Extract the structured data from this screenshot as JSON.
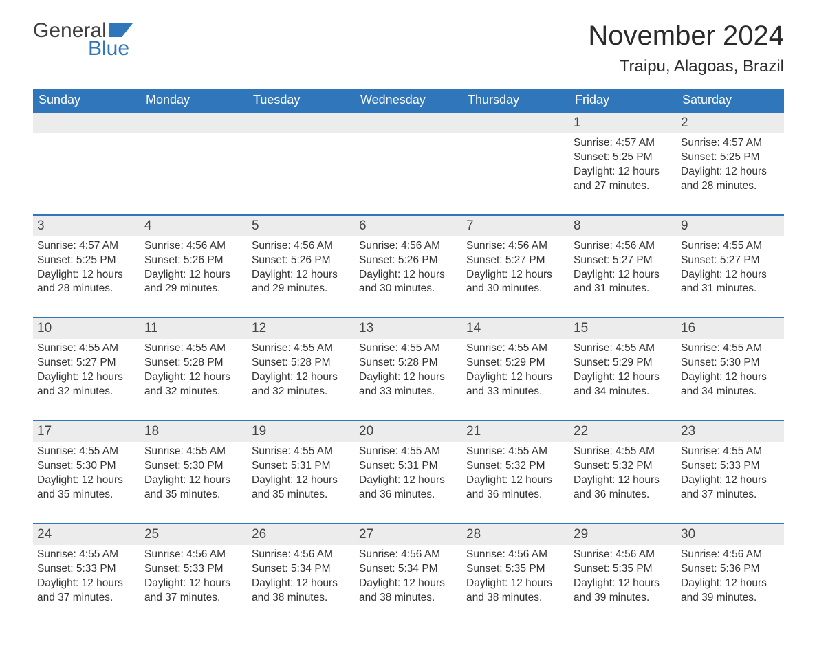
{
  "logo": {
    "general": "General",
    "blue": "Blue"
  },
  "title": "November 2024",
  "location": "Traipu, Alagoas, Brazil",
  "colors": {
    "header_bg": "#2f76bb",
    "header_text": "#ffffff",
    "daynum_bg": "#ececec",
    "row_divider": "#2f76bb",
    "body_text": "#333333",
    "page_bg": "#ffffff",
    "logo_accent": "#2f76bb"
  },
  "weekdays": [
    "Sunday",
    "Monday",
    "Tuesday",
    "Wednesday",
    "Thursday",
    "Friday",
    "Saturday"
  ],
  "weeks": [
    {
      "nums": [
        "",
        "",
        "",
        "",
        "",
        "1",
        "2"
      ],
      "cells": [
        null,
        null,
        null,
        null,
        null,
        {
          "sunrise": "Sunrise: 4:57 AM",
          "sunset": "Sunset: 5:25 PM",
          "day1": "Daylight: 12 hours",
          "day2": "and 27 minutes."
        },
        {
          "sunrise": "Sunrise: 4:57 AM",
          "sunset": "Sunset: 5:25 PM",
          "day1": "Daylight: 12 hours",
          "day2": "and 28 minutes."
        }
      ]
    },
    {
      "nums": [
        "3",
        "4",
        "5",
        "6",
        "7",
        "8",
        "9"
      ],
      "cells": [
        {
          "sunrise": "Sunrise: 4:57 AM",
          "sunset": "Sunset: 5:25 PM",
          "day1": "Daylight: 12 hours",
          "day2": "and 28 minutes."
        },
        {
          "sunrise": "Sunrise: 4:56 AM",
          "sunset": "Sunset: 5:26 PM",
          "day1": "Daylight: 12 hours",
          "day2": "and 29 minutes."
        },
        {
          "sunrise": "Sunrise: 4:56 AM",
          "sunset": "Sunset: 5:26 PM",
          "day1": "Daylight: 12 hours",
          "day2": "and 29 minutes."
        },
        {
          "sunrise": "Sunrise: 4:56 AM",
          "sunset": "Sunset: 5:26 PM",
          "day1": "Daylight: 12 hours",
          "day2": "and 30 minutes."
        },
        {
          "sunrise": "Sunrise: 4:56 AM",
          "sunset": "Sunset: 5:27 PM",
          "day1": "Daylight: 12 hours",
          "day2": "and 30 minutes."
        },
        {
          "sunrise": "Sunrise: 4:56 AM",
          "sunset": "Sunset: 5:27 PM",
          "day1": "Daylight: 12 hours",
          "day2": "and 31 minutes."
        },
        {
          "sunrise": "Sunrise: 4:55 AM",
          "sunset": "Sunset: 5:27 PM",
          "day1": "Daylight: 12 hours",
          "day2": "and 31 minutes."
        }
      ]
    },
    {
      "nums": [
        "10",
        "11",
        "12",
        "13",
        "14",
        "15",
        "16"
      ],
      "cells": [
        {
          "sunrise": "Sunrise: 4:55 AM",
          "sunset": "Sunset: 5:27 PM",
          "day1": "Daylight: 12 hours",
          "day2": "and 32 minutes."
        },
        {
          "sunrise": "Sunrise: 4:55 AM",
          "sunset": "Sunset: 5:28 PM",
          "day1": "Daylight: 12 hours",
          "day2": "and 32 minutes."
        },
        {
          "sunrise": "Sunrise: 4:55 AM",
          "sunset": "Sunset: 5:28 PM",
          "day1": "Daylight: 12 hours",
          "day2": "and 32 minutes."
        },
        {
          "sunrise": "Sunrise: 4:55 AM",
          "sunset": "Sunset: 5:28 PM",
          "day1": "Daylight: 12 hours",
          "day2": "and 33 minutes."
        },
        {
          "sunrise": "Sunrise: 4:55 AM",
          "sunset": "Sunset: 5:29 PM",
          "day1": "Daylight: 12 hours",
          "day2": "and 33 minutes."
        },
        {
          "sunrise": "Sunrise: 4:55 AM",
          "sunset": "Sunset: 5:29 PM",
          "day1": "Daylight: 12 hours",
          "day2": "and 34 minutes."
        },
        {
          "sunrise": "Sunrise: 4:55 AM",
          "sunset": "Sunset: 5:30 PM",
          "day1": "Daylight: 12 hours",
          "day2": "and 34 minutes."
        }
      ]
    },
    {
      "nums": [
        "17",
        "18",
        "19",
        "20",
        "21",
        "22",
        "23"
      ],
      "cells": [
        {
          "sunrise": "Sunrise: 4:55 AM",
          "sunset": "Sunset: 5:30 PM",
          "day1": "Daylight: 12 hours",
          "day2": "and 35 minutes."
        },
        {
          "sunrise": "Sunrise: 4:55 AM",
          "sunset": "Sunset: 5:30 PM",
          "day1": "Daylight: 12 hours",
          "day2": "and 35 minutes."
        },
        {
          "sunrise": "Sunrise: 4:55 AM",
          "sunset": "Sunset: 5:31 PM",
          "day1": "Daylight: 12 hours",
          "day2": "and 35 minutes."
        },
        {
          "sunrise": "Sunrise: 4:55 AM",
          "sunset": "Sunset: 5:31 PM",
          "day1": "Daylight: 12 hours",
          "day2": "and 36 minutes."
        },
        {
          "sunrise": "Sunrise: 4:55 AM",
          "sunset": "Sunset: 5:32 PM",
          "day1": "Daylight: 12 hours",
          "day2": "and 36 minutes."
        },
        {
          "sunrise": "Sunrise: 4:55 AM",
          "sunset": "Sunset: 5:32 PM",
          "day1": "Daylight: 12 hours",
          "day2": "and 36 minutes."
        },
        {
          "sunrise": "Sunrise: 4:55 AM",
          "sunset": "Sunset: 5:33 PM",
          "day1": "Daylight: 12 hours",
          "day2": "and 37 minutes."
        }
      ]
    },
    {
      "nums": [
        "24",
        "25",
        "26",
        "27",
        "28",
        "29",
        "30"
      ],
      "cells": [
        {
          "sunrise": "Sunrise: 4:55 AM",
          "sunset": "Sunset: 5:33 PM",
          "day1": "Daylight: 12 hours",
          "day2": "and 37 minutes."
        },
        {
          "sunrise": "Sunrise: 4:56 AM",
          "sunset": "Sunset: 5:33 PM",
          "day1": "Daylight: 12 hours",
          "day2": "and 37 minutes."
        },
        {
          "sunrise": "Sunrise: 4:56 AM",
          "sunset": "Sunset: 5:34 PM",
          "day1": "Daylight: 12 hours",
          "day2": "and 38 minutes."
        },
        {
          "sunrise": "Sunrise: 4:56 AM",
          "sunset": "Sunset: 5:34 PM",
          "day1": "Daylight: 12 hours",
          "day2": "and 38 minutes."
        },
        {
          "sunrise": "Sunrise: 4:56 AM",
          "sunset": "Sunset: 5:35 PM",
          "day1": "Daylight: 12 hours",
          "day2": "and 38 minutes."
        },
        {
          "sunrise": "Sunrise: 4:56 AM",
          "sunset": "Sunset: 5:35 PM",
          "day1": "Daylight: 12 hours",
          "day2": "and 39 minutes."
        },
        {
          "sunrise": "Sunrise: 4:56 AM",
          "sunset": "Sunset: 5:36 PM",
          "day1": "Daylight: 12 hours",
          "day2": "and 39 minutes."
        }
      ]
    }
  ]
}
